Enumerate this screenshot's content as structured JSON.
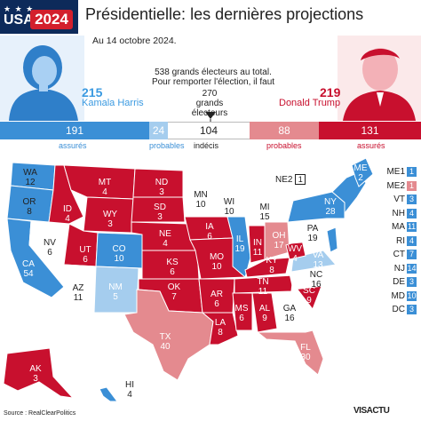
{
  "logo": {
    "usa": "USA",
    "year": "2024",
    "stars": "★ ★ ★"
  },
  "title": "Présidentielle: les dernières projections",
  "date": "Au 14 octobre 2024.",
  "harris": {
    "votes": "215",
    "name": "Kamala Harris"
  },
  "trump": {
    "votes": "219",
    "name": "Donald Trump"
  },
  "note": {
    "line1": "538 grands électeurs au total.",
    "line2": "Pour remporter l'élection, il faut",
    "threshold": "270",
    "line3": "grands électeurs"
  },
  "bar": {
    "segments": [
      {
        "value": "191",
        "label": "assurés",
        "color": "#3b8fd6"
      },
      {
        "value": "24",
        "label": "probables",
        "color": "#a5cdee"
      },
      {
        "value": "104",
        "label": "indécis",
        "color": "#ffffff"
      },
      {
        "value": "88",
        "label": "probables",
        "color": "#e48a8f"
      },
      {
        "value": "131",
        "label": "assurés",
        "color": "#c8102e"
      }
    ]
  },
  "states": [
    {
      "code": "WA",
      "ev": "12"
    },
    {
      "code": "OR",
      "ev": "8"
    },
    {
      "code": "CA",
      "ev": "54"
    },
    {
      "code": "NV",
      "ev": "6"
    },
    {
      "code": "ID",
      "ev": "4"
    },
    {
      "code": "MT",
      "ev": "4"
    },
    {
      "code": "WY",
      "ev": "3"
    },
    {
      "code": "UT",
      "ev": "6"
    },
    {
      "code": "AZ",
      "ev": "11"
    },
    {
      "code": "CO",
      "ev": "10"
    },
    {
      "code": "NM",
      "ev": "5"
    },
    {
      "code": "ND",
      "ev": "3"
    },
    {
      "code": "SD",
      "ev": "3"
    },
    {
      "code": "NE",
      "ev": "4"
    },
    {
      "code": "KS",
      "ev": "6"
    },
    {
      "code": "OK",
      "ev": "7"
    },
    {
      "code": "TX",
      "ev": "40"
    },
    {
      "code": "MN",
      "ev": "10"
    },
    {
      "code": "IA",
      "ev": "6"
    },
    {
      "code": "MO",
      "ev": "10"
    },
    {
      "code": "AR",
      "ev": "6"
    },
    {
      "code": "LA",
      "ev": "8"
    },
    {
      "code": "WI",
      "ev": "10"
    },
    {
      "code": "IL",
      "ev": "19"
    },
    {
      "code": "MI",
      "ev": "15"
    },
    {
      "code": "IN",
      "ev": "11"
    },
    {
      "code": "OH",
      "ev": "17"
    },
    {
      "code": "KY",
      "ev": "8"
    },
    {
      "code": "TN",
      "ev": "11"
    },
    {
      "code": "MS",
      "ev": "6"
    },
    {
      "code": "AL",
      "ev": "9"
    },
    {
      "code": "GA",
      "ev": "16"
    },
    {
      "code": "FL",
      "ev": "30"
    },
    {
      "code": "SC",
      "ev": "9"
    },
    {
      "code": "NC",
      "ev": "16"
    },
    {
      "code": "VA",
      "ev": "13"
    },
    {
      "code": "WV",
      "ev": "4"
    },
    {
      "code": "PA",
      "ev": "19"
    },
    {
      "code": "NY",
      "ev": "28"
    },
    {
      "code": "ME",
      "ev": "2"
    },
    {
      "code": "AK",
      "ev": "3"
    },
    {
      "code": "HI",
      "ev": "4"
    }
  ],
  "ne2": {
    "code": "NE2",
    "ev": "1"
  },
  "legend": [
    {
      "code": "ME1",
      "ev": "1",
      "color": "#3b8fd6"
    },
    {
      "code": "ME2",
      "ev": "1",
      "color": "#e48a8f"
    },
    {
      "code": "VT",
      "ev": "3",
      "color": "#3b8fd6"
    },
    {
      "code": "NH",
      "ev": "4",
      "color": "#3b8fd6"
    },
    {
      "code": "MA",
      "ev": "11",
      "color": "#3b8fd6"
    },
    {
      "code": "RI",
      "ev": "4",
      "color": "#3b8fd6"
    },
    {
      "code": "CT",
      "ev": "7",
      "color": "#3b8fd6"
    },
    {
      "code": "NJ",
      "ev": "14",
      "color": "#3b8fd6"
    },
    {
      "code": "DE",
      "ev": "3",
      "color": "#3b8fd6"
    },
    {
      "code": "MD",
      "ev": "10",
      "color": "#3b8fd6"
    },
    {
      "code": "DC",
      "ev": "3",
      "color": "#3b8fd6"
    }
  ],
  "colors": {
    "blue_safe": "#3b8fd6",
    "blue_likely": "#a5cdee",
    "tossup": "#ffffff",
    "red_likely": "#e48a8f",
    "red_safe": "#c8102e"
  },
  "source": "Source : RealClearPolitics",
  "brand": "VISACTU"
}
